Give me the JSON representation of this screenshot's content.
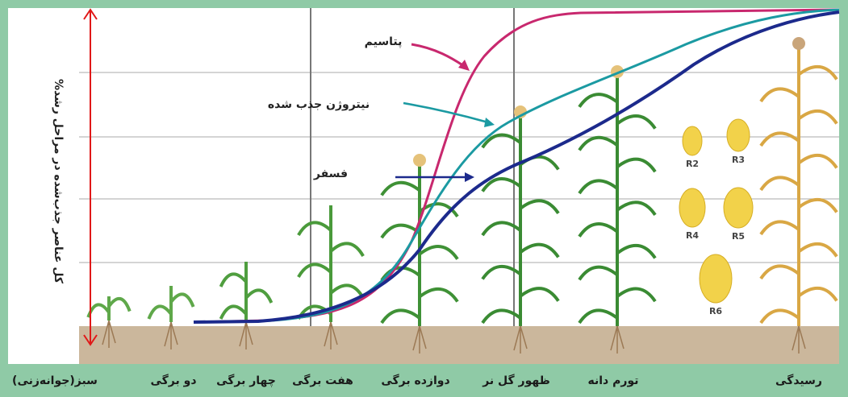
{
  "y_axis_label": "%کل عناصر جذب‌شده در مراحل رشد",
  "curves": [
    {
      "label": "پتاسیم"
    },
    {
      "label": "نیتروژن جذب شده"
    },
    {
      "label": "فسفر"
    }
  ],
  "stages": [
    "سبز(جوانه‌زنی)",
    "دو برگی",
    "چهار برگی",
    "هفت برگی",
    "دوازده برگی",
    "ظهور گل نر",
    "تورم دانه",
    "رسیدگی"
  ],
  "kernel_stages": [
    "R2",
    "R3",
    "R4",
    "R5",
    "R6"
  ]
}
